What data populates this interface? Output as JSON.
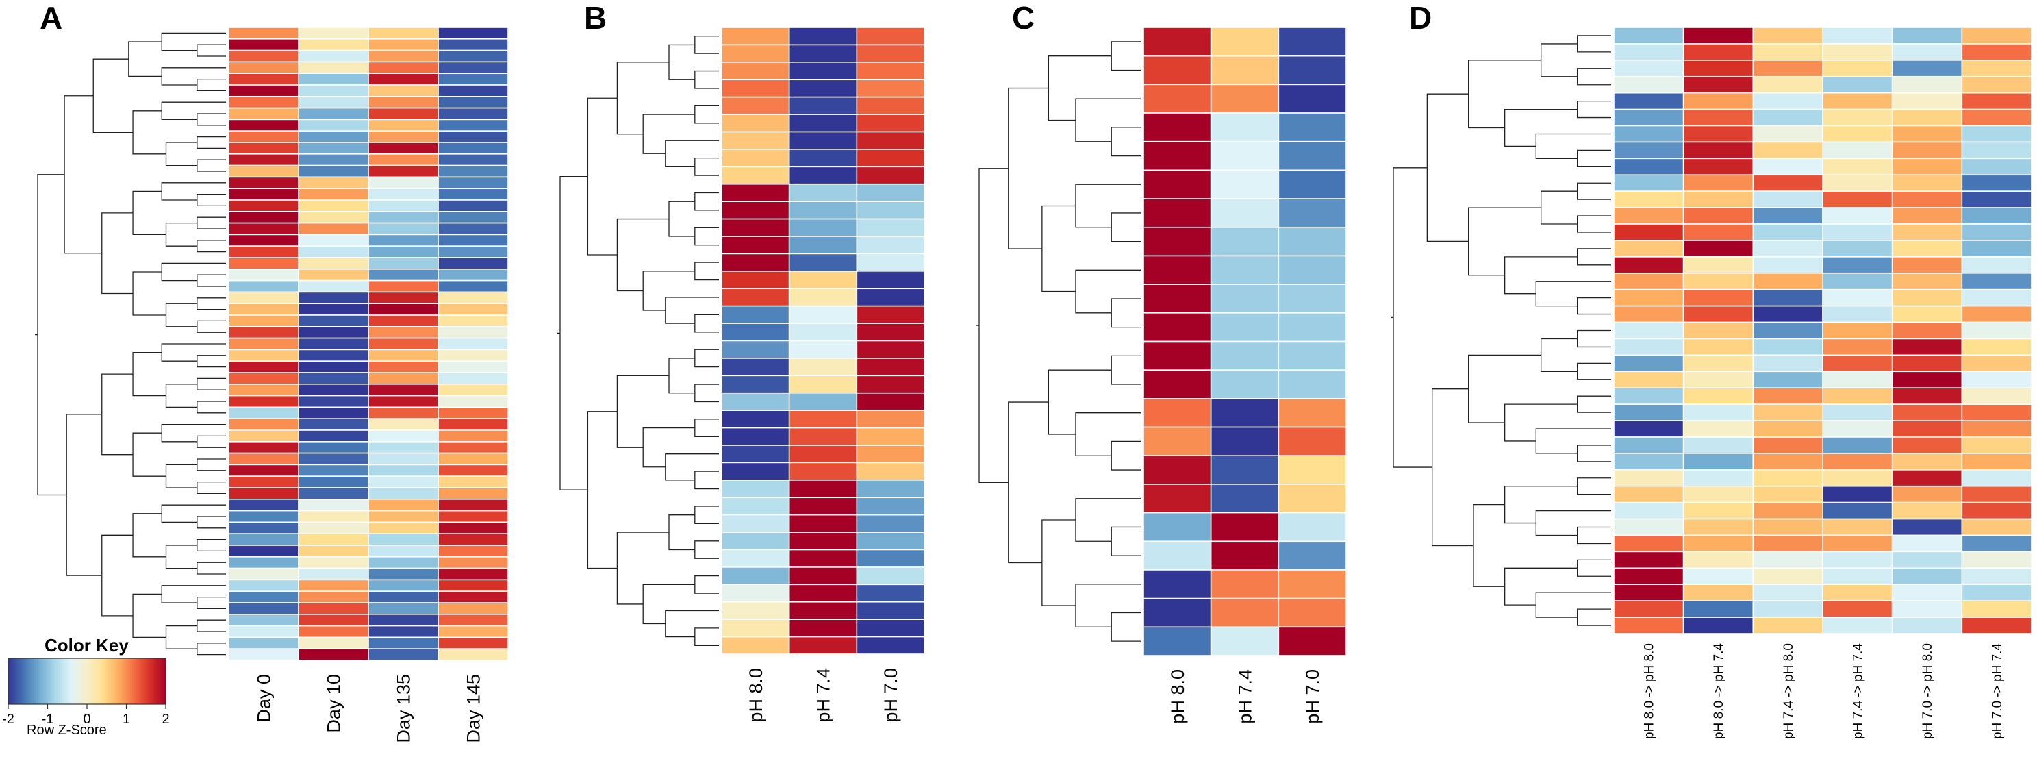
{
  "color_key": {
    "title": "Color Key",
    "subtitle": "Row Z-Score",
    "ticks": [
      "-2",
      "-1",
      "0",
      "1",
      "2"
    ],
    "range": [
      -2,
      2
    ],
    "palette": [
      "#313695",
      "#4575b4",
      "#74add1",
      "#abd9e9",
      "#e0f3f8",
      "#f7efc8",
      "#fee090",
      "#fdae61",
      "#f46d43",
      "#d73027",
      "#a50026"
    ]
  },
  "chart_data": [
    {
      "type": "heatmap",
      "panel": "A",
      "columns": [
        "Day 0",
        "Day 10",
        "Day 135",
        "Day 145"
      ],
      "values": [
        [
          1.0,
          0.0,
          0.5,
          -2.0
        ],
        [
          2.0,
          0.3,
          0.8,
          -1.8
        ],
        [
          1.3,
          -0.5,
          0.9,
          -1.7
        ],
        [
          1.0,
          0.1,
          1.2,
          -1.8
        ],
        [
          1.5,
          -1.0,
          1.8,
          -1.6
        ],
        [
          2.0,
          -0.7,
          0.6,
          -1.9
        ],
        [
          1.2,
          -0.6,
          1.0,
          -1.7
        ],
        [
          0.8,
          -1.2,
          1.5,
          -1.8
        ],
        [
          2.0,
          -0.8,
          0.7,
          -1.6
        ],
        [
          1.2,
          -1.3,
          0.9,
          -1.8
        ],
        [
          1.5,
          -1.2,
          1.9,
          -1.6
        ],
        [
          1.8,
          -1.4,
          1.0,
          -1.7
        ],
        [
          0.7,
          -1.5,
          1.7,
          -1.5
        ],
        [
          1.9,
          0.6,
          -0.3,
          -1.5
        ],
        [
          2.0,
          0.9,
          -0.5,
          -1.6
        ],
        [
          1.7,
          0.4,
          -0.6,
          -1.8
        ],
        [
          2.0,
          0.3,
          -1.0,
          -1.5
        ],
        [
          1.9,
          1.0,
          -0.9,
          -1.7
        ],
        [
          2.0,
          -0.4,
          -1.3,
          -1.6
        ],
        [
          1.5,
          -0.6,
          -1.2,
          -1.4
        ],
        [
          1.2,
          0.2,
          -0.9,
          -1.9
        ],
        [
          -0.3,
          0.6,
          -1.4,
          -1.2
        ],
        [
          -1.0,
          -0.5,
          1.2,
          -1.6
        ],
        [
          0.2,
          -1.9,
          1.7,
          0.2
        ],
        [
          0.7,
          -2.0,
          2.0,
          0.6
        ],
        [
          0.8,
          -1.8,
          1.5,
          0.3
        ],
        [
          1.5,
          -2.0,
          1.0,
          -0.2
        ],
        [
          1.0,
          -1.9,
          1.3,
          -0.5
        ],
        [
          0.6,
          -1.9,
          0.7,
          0.0
        ],
        [
          1.8,
          -2.0,
          1.2,
          -0.3
        ],
        [
          1.3,
          -1.8,
          0.9,
          -0.5
        ],
        [
          0.9,
          -2.0,
          1.9,
          0.3
        ],
        [
          1.6,
          -1.9,
          1.8,
          -0.2
        ],
        [
          -0.8,
          -2.0,
          1.3,
          1.2
        ],
        [
          1.0,
          -1.8,
          0.1,
          1.5
        ],
        [
          0.6,
          -1.9,
          -0.4,
          1.0
        ],
        [
          1.8,
          -1.6,
          -0.7,
          1.3
        ],
        [
          1.1,
          -1.7,
          -0.6,
          0.8
        ],
        [
          1.9,
          -1.5,
          -0.8,
          1.4
        ],
        [
          1.5,
          -1.6,
          -0.5,
          0.5
        ],
        [
          1.7,
          -1.7,
          -0.7,
          0.9
        ],
        [
          -1.9,
          -0.3,
          0.8,
          1.8
        ],
        [
          -1.5,
          0.1,
          0.7,
          1.5
        ],
        [
          -1.7,
          -0.1,
          0.5,
          1.9
        ],
        [
          -1.3,
          0.4,
          -0.8,
          1.7
        ],
        [
          -2.0,
          0.5,
          -0.6,
          1.2
        ],
        [
          -1.2,
          0.0,
          -1.0,
          1.0
        ],
        [
          -0.2,
          -0.5,
          -1.5,
          1.9
        ],
        [
          -0.8,
          0.9,
          -1.2,
          1.6
        ],
        [
          -1.5,
          1.0,
          -1.7,
          1.8
        ],
        [
          -1.7,
          1.4,
          -1.3,
          0.9
        ],
        [
          -1.0,
          1.5,
          -1.9,
          1.3
        ],
        [
          -0.5,
          1.2,
          -1.9,
          0.8
        ],
        [
          -1.0,
          0.0,
          -1.6,
          1.5
        ],
        [
          -0.4,
          2.0,
          -1.7,
          0.2
        ]
      ]
    },
    {
      "type": "heatmap",
      "panel": "B",
      "columns": [
        "pH 8.0",
        "pH 7.4",
        "pH 7.0"
      ],
      "values": [
        [
          0.9,
          -2.0,
          1.3
        ],
        [
          0.9,
          -2.0,
          1.3
        ],
        [
          1.0,
          -2.0,
          1.2
        ],
        [
          1.2,
          -2.0,
          1.1
        ],
        [
          1.1,
          -1.9,
          1.3
        ],
        [
          0.7,
          -2.0,
          1.5
        ],
        [
          0.6,
          -2.0,
          1.7
        ],
        [
          0.6,
          -1.9,
          1.6
        ],
        [
          0.5,
          -2.0,
          1.8
        ],
        [
          2.0,
          -0.9,
          -1.0
        ],
        [
          2.0,
          -1.1,
          -0.9
        ],
        [
          2.0,
          -1.2,
          -0.7
        ],
        [
          2.0,
          -1.3,
          -0.6
        ],
        [
          2.0,
          -1.7,
          -0.5
        ],
        [
          1.6,
          0.5,
          -2.0
        ],
        [
          1.5,
          0.2,
          -2.0
        ],
        [
          -1.5,
          -0.4,
          1.8
        ],
        [
          -1.6,
          -0.5,
          1.9
        ],
        [
          -1.4,
          -0.4,
          1.9
        ],
        [
          -1.9,
          0.1,
          1.9
        ],
        [
          -1.8,
          0.3,
          1.9
        ],
        [
          -1.0,
          -1.1,
          2.0
        ],
        [
          -2.0,
          1.3,
          1.0
        ],
        [
          -2.0,
          1.4,
          0.8
        ],
        [
          -1.9,
          1.5,
          0.9
        ],
        [
          -2.0,
          1.4,
          0.6
        ],
        [
          -0.8,
          2.0,
          -1.2
        ],
        [
          -0.7,
          2.0,
          -1.3
        ],
        [
          -0.6,
          2.0,
          -1.4
        ],
        [
          -0.9,
          2.0,
          -1.2
        ],
        [
          -0.5,
          2.0,
          -1.5
        ],
        [
          -1.1,
          2.0,
          -0.7
        ],
        [
          -0.3,
          2.0,
          -1.8
        ],
        [
          0.0,
          2.0,
          -1.9
        ],
        [
          0.2,
          2.0,
          -2.0
        ],
        [
          0.6,
          1.8,
          -2.0
        ]
      ]
    },
    {
      "type": "heatmap",
      "panel": "C",
      "columns": [
        "pH 8.0",
        "pH 7.4",
        "pH 7.0"
      ],
      "values": [
        [
          1.8,
          0.5,
          -1.9
        ],
        [
          1.5,
          0.6,
          -1.9
        ],
        [
          1.3,
          1.0,
          -2.0
        ],
        [
          2.0,
          -0.5,
          -1.5
        ],
        [
          2.0,
          -0.4,
          -1.5
        ],
        [
          2.0,
          -0.4,
          -1.6
        ],
        [
          2.0,
          -0.5,
          -1.4
        ],
        [
          2.0,
          -0.9,
          -1.0
        ],
        [
          2.0,
          -0.9,
          -1.0
        ],
        [
          2.0,
          -0.9,
          -0.9
        ],
        [
          2.0,
          -0.9,
          -0.9
        ],
        [
          2.0,
          -0.9,
          -0.9
        ],
        [
          2.0,
          -0.9,
          -0.9
        ],
        [
          1.2,
          -2.0,
          1.0
        ],
        [
          1.0,
          -2.0,
          1.3
        ],
        [
          1.9,
          -1.8,
          0.4
        ],
        [
          1.8,
          -1.8,
          0.5
        ],
        [
          -1.2,
          2.0,
          -0.6
        ],
        [
          -0.6,
          2.0,
          -1.4
        ],
        [
          -2.0,
          1.1,
          1.0
        ],
        [
          -2.0,
          1.1,
          1.1
        ],
        [
          -1.6,
          -0.5,
          2.0
        ]
      ]
    },
    {
      "type": "heatmap",
      "panel": "D",
      "columns": [
        "pH 8.0 -> pH 8.0",
        "pH 8.0 -> pH 7.4",
        "pH 7.4 -> pH 8.0",
        "pH 7.4 -> pH 7.4",
        "pH 7.0 -> pH 8.0",
        "pH 7.0 -> pH 7.4"
      ],
      "values": [
        [
          -1.0,
          2.0,
          0.6,
          -0.5,
          -1.0,
          0.7
        ],
        [
          -0.6,
          1.5,
          0.3,
          0.1,
          -0.5,
          1.2
        ],
        [
          -0.5,
          1.6,
          1.0,
          0.4,
          -1.4,
          0.5
        ],
        [
          -0.3,
          1.8,
          0.2,
          -0.9,
          -0.2,
          0.6
        ],
        [
          -1.7,
          0.9,
          -0.5,
          0.7,
          0.0,
          1.3
        ],
        [
          -1.3,
          1.3,
          -0.8,
          0.3,
          0.5,
          1.1
        ],
        [
          -1.2,
          1.5,
          -0.2,
          0.4,
          0.8,
          -0.8
        ],
        [
          -1.4,
          1.8,
          0.5,
          -0.3,
          0.9,
          -0.7
        ],
        [
          -1.6,
          1.7,
          -0.4,
          0.2,
          0.8,
          -0.9
        ],
        [
          -1.0,
          1.0,
          1.4,
          0.1,
          0.6,
          -1.6
        ],
        [
          0.4,
          0.6,
          -0.6,
          1.3,
          1.1,
          -1.8
        ],
        [
          0.9,
          1.2,
          -1.4,
          -0.4,
          0.9,
          -1.2
        ],
        [
          1.6,
          1.2,
          -0.8,
          -0.6,
          0.6,
          -1.0
        ],
        [
          0.6,
          2.0,
          -0.5,
          -0.9,
          0.4,
          -1.1
        ],
        [
          1.9,
          0.2,
          -0.5,
          -1.4,
          1.0,
          -0.5
        ],
        [
          0.9,
          0.5,
          0.8,
          -1.0,
          0.7,
          -1.4
        ],
        [
          0.8,
          1.2,
          -1.7,
          -0.4,
          0.5,
          -0.5
        ],
        [
          0.9,
          1.4,
          -2.0,
          -0.6,
          0.4,
          0.9
        ],
        [
          -0.5,
          0.6,
          -1.4,
          0.8,
          1.1,
          -0.3
        ],
        [
          -0.6,
          0.5,
          -0.8,
          1.0,
          1.9,
          0.4
        ],
        [
          -1.3,
          0.3,
          -0.6,
          1.3,
          1.5,
          0.6
        ],
        [
          0.5,
          0.1,
          -1.1,
          -0.3,
          2.0,
          -0.4
        ],
        [
          -0.9,
          0.4,
          1.0,
          0.6,
          1.8,
          0.0
        ],
        [
          -1.3,
          -0.5,
          0.6,
          -0.6,
          1.3,
          1.2
        ],
        [
          -2.0,
          0.0,
          0.7,
          -0.3,
          1.4,
          1.0
        ],
        [
          -1.1,
          -0.6,
          1.1,
          -1.3,
          1.3,
          0.5
        ],
        [
          -1.0,
          -1.2,
          0.9,
          1.0,
          0.6,
          0.8
        ],
        [
          0.1,
          -0.5,
          0.4,
          0.3,
          1.8,
          -0.5
        ],
        [
          0.6,
          0.2,
          0.5,
          -2.0,
          0.9,
          1.3
        ],
        [
          -0.5,
          0.4,
          0.9,
          -1.7,
          0.5,
          1.4
        ],
        [
          -0.3,
          0.6,
          0.7,
          0.6,
          -1.9,
          0.6
        ],
        [
          1.2,
          0.8,
          1.0,
          0.9,
          -0.4,
          -1.4
        ],
        [
          2.0,
          0.1,
          -0.3,
          -0.5,
          -0.7,
          -0.2
        ],
        [
          2.0,
          -0.4,
          0.0,
          -0.5,
          -0.9,
          -0.5
        ],
        [
          2.0,
          0.6,
          -0.5,
          0.5,
          -0.4,
          -0.8
        ],
        [
          1.4,
          -1.6,
          -0.6,
          1.3,
          -0.4,
          0.4
        ],
        [
          1.2,
          -2.0,
          0.5,
          -0.5,
          -0.6,
          1.5
        ]
      ]
    }
  ]
}
